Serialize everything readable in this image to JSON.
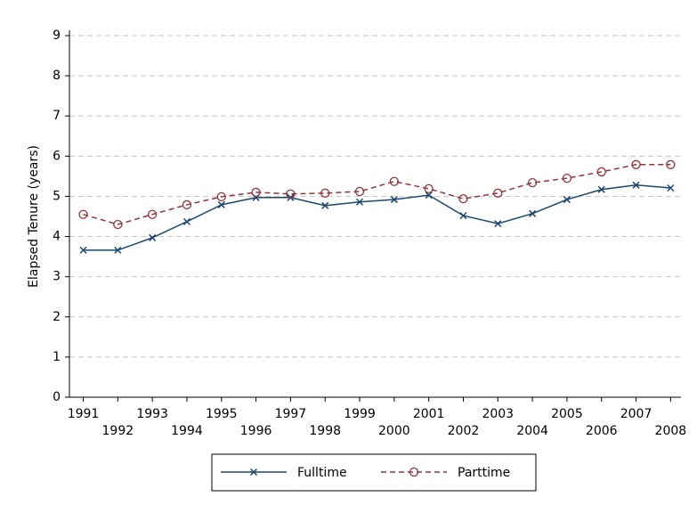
{
  "chart_data": {
    "type": "line",
    "ylabel": "Elapsed Tenure (years)",
    "x": [
      1991,
      1992,
      1993,
      1994,
      1995,
      1996,
      1997,
      1998,
      1999,
      2000,
      2001,
      2002,
      2003,
      2004,
      2005,
      2006,
      2007,
      2008
    ],
    "series": [
      {
        "name": "Fulltime",
        "color": "#1a476f",
        "marker": "x",
        "dashed": false,
        "values": [
          3.66,
          3.66,
          3.97,
          4.37,
          4.79,
          4.97,
          4.97,
          4.77,
          4.86,
          4.92,
          5.03,
          4.52,
          4.32,
          4.57,
          4.92,
          5.17,
          5.28,
          5.21
        ]
      },
      {
        "name": "Parttime",
        "color": "#90353b",
        "marker": "circle",
        "dashed": true,
        "values": [
          4.55,
          4.3,
          4.55,
          4.79,
          4.99,
          5.1,
          5.06,
          5.08,
          5.12,
          5.37,
          5.19,
          4.94,
          5.08,
          5.34,
          5.45,
          5.61,
          5.79,
          5.79
        ]
      }
    ],
    "xlim": [
      1990.6,
      2008.3
    ],
    "xticks": [
      1991,
      1992,
      1993,
      1994,
      1995,
      1996,
      1997,
      1998,
      1999,
      2000,
      2001,
      2002,
      2003,
      2004,
      2005,
      2006,
      2007,
      2008
    ],
    "ylim": [
      0,
      9
    ],
    "yticks": [
      0,
      1,
      2,
      3,
      4,
      5,
      6,
      7,
      8,
      9
    ],
    "grid": true,
    "legend": "bottom"
  }
}
